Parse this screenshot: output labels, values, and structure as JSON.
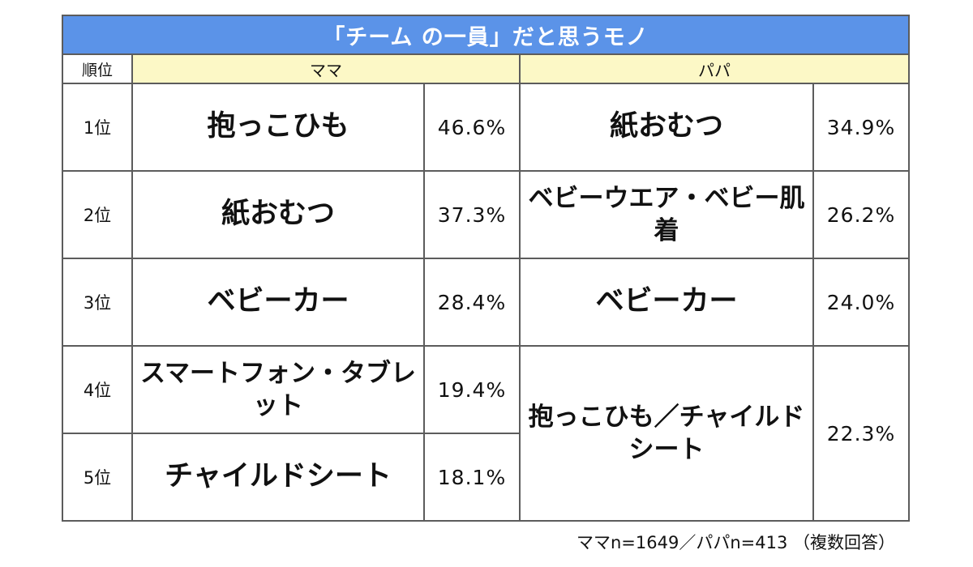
{
  "title": "「チーム の一員」だと思うモノ",
  "header": {
    "rank": "順位",
    "mama": "ママ",
    "papa": "パパ"
  },
  "rows": [
    {
      "rank": "1位",
      "mama_item": "抱っこひも",
      "mama_pct": "46.6%",
      "papa_item": "紙おむつ",
      "papa_pct": "34.9%"
    },
    {
      "rank": "2位",
      "mama_item": "紙おむつ",
      "mama_pct": "37.3%",
      "papa_item": "ベビーウエア・ベビー肌着",
      "papa_pct": "26.2%"
    },
    {
      "rank": "3位",
      "mama_item": "ベビーカー",
      "mama_pct": "28.4%",
      "papa_item": "ベビーカー",
      "papa_pct": "24.0%"
    },
    {
      "rank": "4位",
      "mama_item": "スマートフォン・タブレット",
      "mama_pct": "19.4%",
      "papa_item": "抱っこひも／チャイルドシート",
      "papa_pct": "22.3%"
    },
    {
      "rank": "5位",
      "mama_item": "チャイルドシート",
      "mama_pct": "18.1%"
    }
  ],
  "footnote": "ママn=1649／パパn=413 （複数回答）",
  "colors": {
    "title_bg": "#5b93e8",
    "header_bg": "#fcf8c6",
    "border": "#5c5c5c"
  }
}
